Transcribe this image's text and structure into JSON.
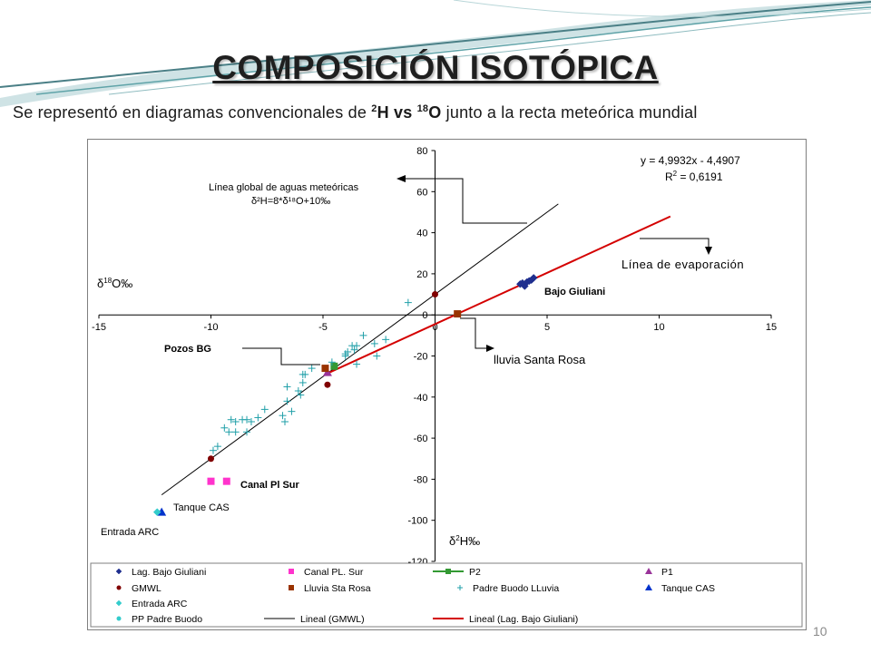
{
  "slide": {
    "title": "COMPOSICIÓN ISOTÓPICA",
    "subtitle": {
      "part1": "Se representó en diagramas convencionales de ",
      "sup1": "2",
      "h": "H vs ",
      "sup2": "18",
      "o": "O",
      "part2": " junto a la recta meteórica mundial"
    },
    "page_number": "10"
  },
  "colors": {
    "deco_teal": "#5fa3a8",
    "deco_dark": "#4a7f86",
    "gmwl_line": "#000000",
    "evap_line": "#d40000",
    "navy": "#1f2f8f",
    "magenta": "#ff33cc",
    "green": "#339933",
    "purple": "#993399",
    "dark_red": "#800000",
    "brown": "#993300",
    "teal": "#1f9fa8",
    "blue": "#0033cc",
    "cyan": "#33cccc",
    "red_square": "#cc2200"
  },
  "chart_data": {
    "type": "scatter",
    "x_axis": {
      "range": [
        -15,
        15
      ],
      "ticks": [
        -15,
        -10,
        -5,
        0,
        5,
        10,
        15
      ],
      "label": "δ18O‰",
      "label_main": "δ",
      "label_sup": "18",
      "label_unit": "O‰"
    },
    "y_axis": {
      "range": [
        -120,
        80
      ],
      "ticks": [
        -120,
        -100,
        -80,
        -60,
        -40,
        -20,
        0,
        20,
        40,
        60,
        80
      ],
      "label": "δ2H‰",
      "label_main": "δ",
      "label_sup": "2",
      "label_unit": "H‰"
    },
    "equation": "y = 4,9932x - 4,4907",
    "r2_main": "R",
    "r2_sup": "2",
    "r2_rest": " = 0,6191",
    "annotations": {
      "gmwl_line1": "Línea global de aguas meteóricas",
      "gmwl_line2": "δ²H=8*δ¹⁸O+10‰",
      "evaporation": "Línea de evaporación",
      "bajo_giuliani": "Bajo Giuliani",
      "lluvia_santa_rosa": "lluvia Santa Rosa",
      "pozos_bg": "Pozos BG",
      "canal_pl_sur": "Canal Pl Sur",
      "tanque_cas": "Tanque CAS",
      "entrada_arc": "Entrada ARC"
    },
    "series": [
      {
        "name": "Lag. Bajo Giuliani",
        "marker": "diamond",
        "color": "#1f2f8f",
        "points": [
          [
            3.8,
            15
          ],
          [
            4.0,
            14
          ],
          [
            4.1,
            16
          ],
          [
            4.3,
            17
          ],
          [
            4.4,
            18
          ],
          [
            3.9,
            15.5
          ],
          [
            4.2,
            16.5
          ]
        ]
      },
      {
        "name": "Canal PL. Sur",
        "marker": "square",
        "color": "#ff33cc",
        "points": [
          [
            -10.0,
            -81
          ],
          [
            -9.3,
            -81
          ]
        ]
      },
      {
        "name": "P2",
        "marker": "square",
        "color": "#339933",
        "points": [
          [
            -4.5,
            -25
          ]
        ]
      },
      {
        "name": "P1",
        "marker": "triangle",
        "color": "#993399",
        "points": [
          [
            -4.8,
            -28
          ]
        ]
      },
      {
        "name": "GMWL",
        "marker": "circle",
        "color": "#800000",
        "points": [
          [
            0,
            10
          ],
          [
            -4.8,
            -34
          ],
          [
            -10,
            -70
          ]
        ]
      },
      {
        "name": "Lluvia Sta Rosa",
        "marker": "square",
        "color": "#993300",
        "points": [
          [
            1.0,
            0.5
          ],
          [
            -4.9,
            -26
          ]
        ]
      },
      {
        "name": "Padre Buodo LLuvia",
        "marker": "plus",
        "color": "#1f9fa8",
        "points": [
          [
            -1.2,
            6
          ],
          [
            -2.2,
            -12
          ],
          [
            -2.7,
            -14
          ],
          [
            -3.2,
            -10
          ],
          [
            -3.5,
            -15
          ],
          [
            -3.6,
            -17
          ],
          [
            -3.9,
            -18
          ],
          [
            -2.6,
            -20
          ],
          [
            -3.5,
            -24
          ],
          [
            -4.0,
            -20
          ],
          [
            -5.5,
            -26
          ],
          [
            -5.8,
            -29
          ],
          [
            -5.9,
            -33
          ],
          [
            -6.1,
            -37
          ],
          [
            -6.6,
            -35
          ],
          [
            -5.9,
            -29
          ],
          [
            -6.0,
            -39
          ],
          [
            -6.6,
            -42
          ],
          [
            -6.4,
            -47
          ],
          [
            -6.8,
            -49
          ],
          [
            -6.7,
            -52
          ],
          [
            -7.6,
            -46
          ],
          [
            -7.9,
            -50
          ],
          [
            -8.2,
            -52
          ],
          [
            -8.4,
            -51
          ],
          [
            -8.6,
            -51
          ],
          [
            -8.9,
            -52
          ],
          [
            -9.1,
            -51
          ],
          [
            -8.4,
            -57
          ],
          [
            -8.9,
            -57
          ],
          [
            -9.4,
            -55
          ],
          [
            -9.2,
            -57
          ],
          [
            -9.9,
            -66
          ],
          [
            -9.7,
            -64
          ],
          [
            -4.0,
            -19
          ],
          [
            -3.7,
            -15
          ],
          [
            -4.6,
            -23
          ]
        ]
      },
      {
        "name": "Tanque CAS",
        "marker": "triangle",
        "color": "#0033cc",
        "points": [
          [
            -12.2,
            -96
          ]
        ]
      },
      {
        "name": "Entrada ARC",
        "marker": "diamond",
        "color": "#33cccc",
        "points": [
          [
            -12.4,
            -96
          ]
        ]
      },
      {
        "name": "PP Padre Buodo",
        "marker": "circle",
        "color": "#1f9fa8",
        "points": []
      }
    ],
    "lines": [
      {
        "name": "Lineal (GMWL)",
        "color": "#000000",
        "x_range": [
          -12.2,
          5.5
        ],
        "slope": 8,
        "intercept": 10
      },
      {
        "name": "Lineal (Lag. Bajo Giuliani)",
        "color": "#d40000",
        "x_range": [
          -4.9,
          10.5
        ],
        "slope": 4.9932,
        "intercept": -4.4907
      }
    ],
    "legend": {
      "placement": "bottom",
      "entries": [
        {
          "label": "Lag. Bajo Giuliani",
          "marker": "diamond",
          "color": "#1f2f8f"
        },
        {
          "label": "Canal PL. Sur",
          "marker": "square",
          "color": "#ff33cc"
        },
        {
          "label": "P2",
          "marker": "line-square",
          "color": "#339933"
        },
        {
          "label": "P1",
          "marker": "triangle",
          "color": "#993399"
        },
        {
          "label": "GMWL",
          "marker": "circle",
          "color": "#800000"
        },
        {
          "label": "Lluvia Sta Rosa",
          "marker": "square",
          "color": "#993300"
        },
        {
          "label": "Padre Buodo LLuvia",
          "marker": "plus",
          "color": "#1f9fa8"
        },
        {
          "label": "Tanque CAS",
          "marker": "triangle",
          "color": "#0033cc"
        },
        {
          "label": "Entrada ARC",
          "marker": "diamond",
          "color": "#33cccc"
        },
        {
          "label": "",
          "marker": "none",
          "color": "#ffffff"
        },
        {
          "label": "",
          "marker": "none",
          "color": "#ffffff"
        },
        {
          "label": "",
          "marker": "none",
          "color": "#ffffff"
        },
        {
          "label": "PP Padre Buodo",
          "marker": "circle",
          "color": "#33cccc"
        },
        {
          "label": "Lineal (GMWL)",
          "marker": "line",
          "color": "#000000"
        },
        {
          "label": "Lineal (Lag. Bajo Giuliani)",
          "marker": "line",
          "color": "#d40000"
        },
        {
          "label": "",
          "marker": "none",
          "color": "#ffffff"
        }
      ]
    }
  }
}
